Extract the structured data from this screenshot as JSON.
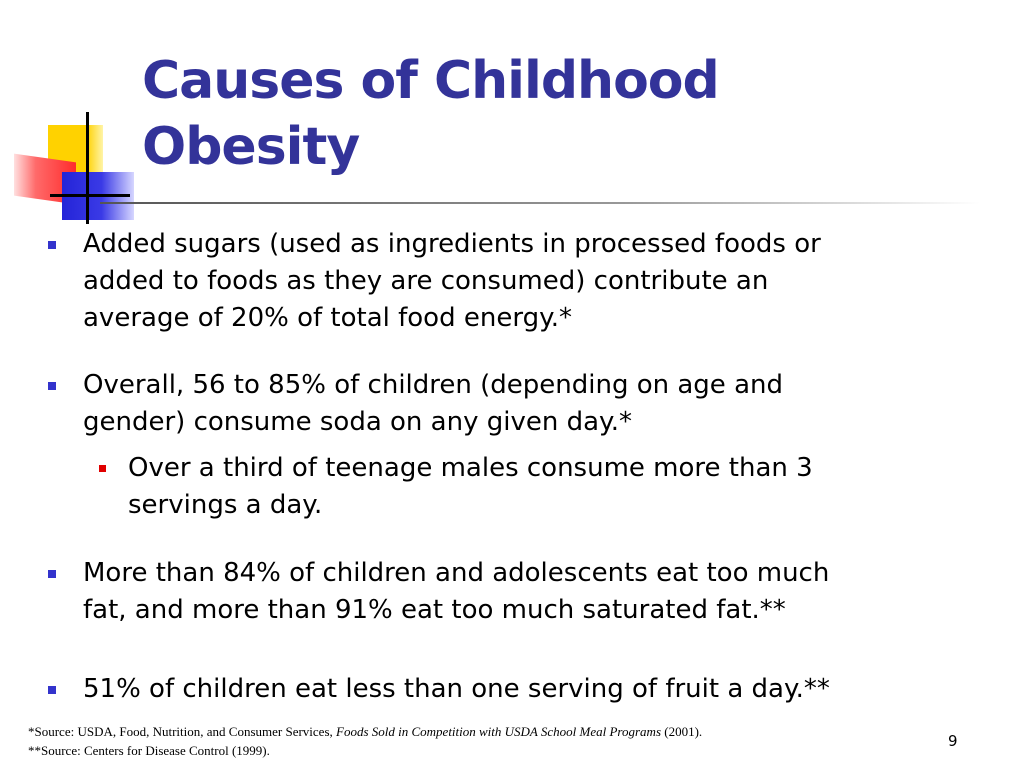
{
  "slide": {
    "title_line1": "Causes of Childhood",
    "title_line2": "Obesity",
    "page_number": "9"
  },
  "bullets": [
    {
      "text_lines": [
        "Added sugars (used as ingredients in processed foods or",
        "added to foods as they are consumed) contribute an",
        "average of 20% of total food energy.*"
      ]
    },
    {
      "text_lines": [
        "Overall, 56 to 85% of children (depending on age and",
        "gender) consume soda on any given day.*"
      ],
      "sub_bullets": [
        {
          "text_lines": [
            "Over a third of teenage males consume more than 3",
            "servings a day."
          ]
        }
      ]
    },
    {
      "text_lines": [
        "More than 84% of children and adolescents eat too much",
        "fat, and more than 91% eat too much saturated fat.**"
      ]
    },
    {
      "text_lines": [
        "51% of children eat less than one serving of fruit a day.**"
      ]
    }
  ],
  "footnotes": {
    "first_prefix": "*Source: USDA, Food, Nutrition, and Consumer Services, ",
    "first_title": "Foods Sold in Competition with USDA School Meal Programs",
    "first_suffix": " (2001).",
    "second": "**Source: Centers for Disease Control (1999)."
  },
  "colors": {
    "title": "#333399",
    "bullet_marker": "#3333cc",
    "sub_bullet_marker": "#e00000",
    "logo_yellow": "#ffd200",
    "logo_red": "#ff2c2c",
    "logo_blue": "#2424d8"
  }
}
